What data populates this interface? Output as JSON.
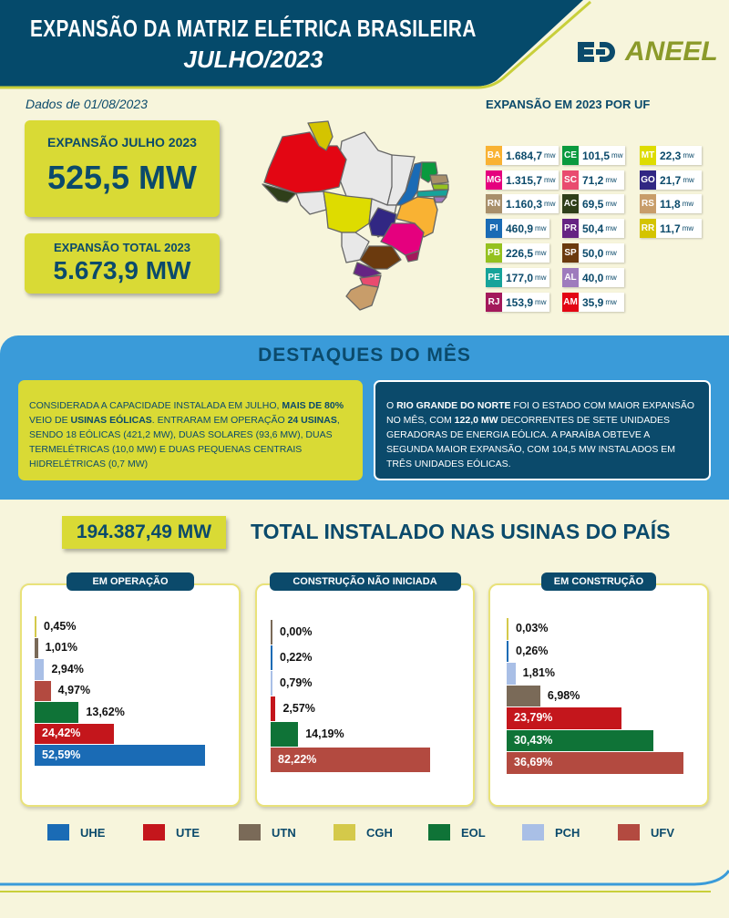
{
  "header": {
    "title": "EXPANSÃO DA MATRIZ ELÉTRICA BRASILEIRA",
    "subtitle": "JULHO/2023",
    "logo_text": "ANEEL",
    "date": "Dados de 01/08/2023"
  },
  "kpis": {
    "month_label": "EXPANSÃO JULHO 2023",
    "month_value": "525,5 MW",
    "total_label": "EXPANSÃO TOTAL 2023",
    "total_value": "5.673,9 MW"
  },
  "uf": {
    "title": "EXPANSÃO EM 2023 POR UF",
    "unit": "mw",
    "items": [
      {
        "uf": "BA",
        "value": "1.684,7",
        "color": "#f9b233"
      },
      {
        "uf": "MG",
        "value": "1.315,7",
        "color": "#e5007e"
      },
      {
        "uf": "RN",
        "value": "1.160,3",
        "color": "#a88f6a"
      },
      {
        "uf": "PI",
        "value": "460,9",
        "color": "#1a6bb5"
      },
      {
        "uf": "PB",
        "value": "226,5",
        "color": "#95c11f"
      },
      {
        "uf": "PE",
        "value": "177,0",
        "color": "#16a39a"
      },
      {
        "uf": "RJ",
        "value": "153,9",
        "color": "#a3195b"
      },
      {
        "uf": "CE",
        "value": "101,5",
        "color": "#0a9a3e"
      },
      {
        "uf": "SC",
        "value": "71,2",
        "color": "#e94b6f"
      },
      {
        "uf": "AC",
        "value": "69,5",
        "color": "#2f3f1a"
      },
      {
        "uf": "PR",
        "value": "50,4",
        "color": "#662483"
      },
      {
        "uf": "SP",
        "value": "50,0",
        "color": "#6b3a0e"
      },
      {
        "uf": "AL",
        "value": "40,0",
        "color": "#9e7bbd"
      },
      {
        "uf": "AM",
        "value": "35,9",
        "color": "#e30613"
      },
      {
        "uf": "MT",
        "value": "22,3",
        "color": "#dedc00"
      },
      {
        "uf": "GO",
        "value": "21,7",
        "color": "#312783"
      },
      {
        "uf": "RS",
        "value": "11,8",
        "color": "#c89d6a"
      },
      {
        "uf": "RR",
        "value": "11,7",
        "color": "#d4c400"
      }
    ]
  },
  "highlights": {
    "title": "DESTAQUES DO MÊS",
    "left": [
      {
        "t": "CONSIDERADA A CAPACIDADE INSTALADA EM JULHO, ",
        "b": false
      },
      {
        "t": "MAIS DE 80%",
        "b": true
      },
      {
        "t": " VEIO DE ",
        "b": false
      },
      {
        "t": "USINAS EÓLICAS",
        "b": true
      },
      {
        "t": ". ENTRARAM EM OPERAÇÃO ",
        "b": false
      },
      {
        "t": "24 USINAS",
        "b": true
      },
      {
        "t": ", SENDO 18 EÓLICAS (421,2 MW), DUAS SOLARES (93,6 MW), DUAS TERMELÉTRICAS (10,0 MW) E DUAS PEQUENAS CENTRAIS HIDRELÉTRICAS (0,7 MW)",
        "b": false
      }
    ],
    "right": [
      {
        "t": "O ",
        "b": false
      },
      {
        "t": "RIO GRANDE DO NORTE",
        "b": true
      },
      {
        "t": " FOI O ESTADO COM MAIOR EXPANSÃO NO MÊS, COM ",
        "b": false
      },
      {
        "t": "122,0 MW",
        "b": true
      },
      {
        "t": " DECORRENTES DE SETE UNIDADES GERADORAS DE ENERGIA EÓLICA. A PARAÍBA OBTEVE A SEGUNDA MAIOR EXPANSÃO, COM 104,5 MW INSTALADOS EM TRÊS UNIDADES EÓLICAS.",
        "b": false
      }
    ]
  },
  "installed": {
    "value": "194.387,49 MW",
    "title": "TOTAL INSTALADO NAS USINAS DO PAÍS"
  },
  "colors": {
    "UHE": "#1a6bb5",
    "UTE": "#c4161c",
    "UTN": "#7a6a58",
    "CGH": "#d4c94a",
    "EOL": "#0f7337",
    "PCH": "#a9bfe6",
    "UFV": "#b34a40"
  },
  "chart_data": [
    {
      "type": "bar",
      "title": "EM OPERAÇÃO",
      "categories": [
        "CGH",
        "UTN",
        "PCH",
        "UFV",
        "EOL",
        "UTE",
        "UHE"
      ],
      "values": [
        0.45,
        1.01,
        2.94,
        4.97,
        13.62,
        24.42,
        52.59
      ],
      "labels": [
        "0,45%",
        "1,01%",
        "2,94%",
        "4,97%",
        "13,62%",
        "24,42%",
        "52,59%"
      ]
    },
    {
      "type": "bar",
      "title": "CONSTRUÇÃO NÃO INICIADA",
      "categories": [
        "UTN",
        "UHE",
        "PCH",
        "UTE",
        "EOL",
        "UFV"
      ],
      "values": [
        0.0,
        0.22,
        0.79,
        2.57,
        14.19,
        82.22
      ],
      "labels": [
        "0,00%",
        "0,22%",
        "0,79%",
        "2,57%",
        "14,19%",
        "82,22%"
      ]
    },
    {
      "type": "bar",
      "title": "EM CONSTRUÇÃO",
      "categories": [
        "CGH",
        "UHE",
        "PCH",
        "UTN",
        "UTE",
        "EOL",
        "UFV"
      ],
      "values": [
        0.03,
        0.26,
        1.81,
        6.98,
        23.79,
        30.43,
        36.69
      ],
      "labels": [
        "0,03%",
        "0,26%",
        "1,81%",
        "6,98%",
        "23,79%",
        "30,43%",
        "36,69%"
      ]
    }
  ],
  "legend": [
    "UHE",
    "UTE",
    "UTN",
    "CGH",
    "EOL",
    "PCH",
    "UFV"
  ]
}
